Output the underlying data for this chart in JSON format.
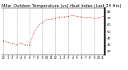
{
  "title": "Milw  Outdoor Temperature (vs) Heat Index (Last 24 Hrs)",
  "background_color": "#ffffff",
  "plot_bg_color": "#ffffff",
  "line_color": "#cc0000",
  "grid_color": "#999999",
  "title_fontsize": 3.8,
  "tick_fontsize": 2.8,
  "ylim": [
    15,
    85
  ],
  "yticks": [
    20,
    30,
    40,
    50,
    60,
    70,
    80
  ],
  "hours": [
    0,
    1,
    2,
    3,
    4,
    5,
    6,
    7,
    8,
    9,
    10,
    11,
    12,
    13,
    14,
    15,
    16,
    17,
    18,
    19,
    20,
    21,
    22,
    23
  ],
  "temps": [
    36,
    34,
    32,
    30,
    32,
    30,
    29,
    48,
    58,
    64,
    68,
    68,
    70,
    72,
    72,
    73,
    74,
    73,
    72,
    71,
    72,
    70,
    71,
    73
  ],
  "xtick_labels": [
    "12",
    "1",
    "2",
    "3",
    "4",
    "5",
    "6",
    "7",
    "8",
    "9",
    "10",
    "11",
    "12",
    "1",
    "2",
    "3",
    "4",
    "5",
    "6",
    "7",
    "8",
    "9",
    "10",
    "11"
  ],
  "grid_xticks": [
    0,
    3,
    6,
    9,
    12,
    15,
    18,
    21,
    23
  ]
}
